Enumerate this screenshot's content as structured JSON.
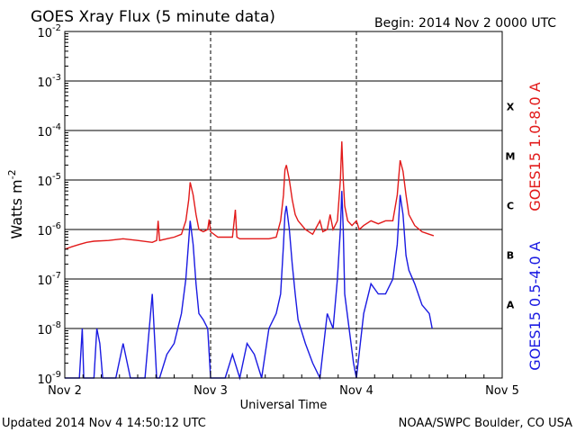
{
  "chart_data": {
    "type": "line",
    "title": "GOES Xray Flux (5 minute data)",
    "begin_label": "Begin:  2014 Nov 2 0000 UTC",
    "xlabel": "Universal Time",
    "ylabel": "Watts m",
    "ylabel_superscript": "-2",
    "x_ticks": [
      "Nov 2",
      "Nov 3",
      "Nov 4",
      "Nov 5"
    ],
    "xlim_days": [
      0,
      3
    ],
    "y_scale": "log",
    "ylim": [
      1e-09,
      0.01
    ],
    "y_ticks": [
      {
        "mantissa": "10",
        "exp": "-2"
      },
      {
        "mantissa": "10",
        "exp": "-3"
      },
      {
        "mantissa": "10",
        "exp": "-4"
      },
      {
        "mantissa": "10",
        "exp": "-5"
      },
      {
        "mantissa": "10",
        "exp": "-6"
      },
      {
        "mantissa": "10",
        "exp": "-7"
      },
      {
        "mantissa": "10",
        "exp": "-8"
      },
      {
        "mantissa": "10",
        "exp": "-9"
      }
    ],
    "flare_classes": [
      "X",
      "M",
      "C",
      "B",
      "A"
    ],
    "grid": true,
    "series": [
      {
        "name": "GOES15 1.0-8.0 A",
        "color": "#e21a1a",
        "points": [
          [
            0.0,
            4e-07
          ],
          [
            0.05,
            4.5e-07
          ],
          [
            0.1,
            5e-07
          ],
          [
            0.15,
            5.5e-07
          ],
          [
            0.2,
            5.8e-07
          ],
          [
            0.3,
            6e-07
          ],
          [
            0.4,
            6.5e-07
          ],
          [
            0.5,
            6e-07
          ],
          [
            0.6,
            5.5e-07
          ],
          [
            0.63,
            6e-07
          ],
          [
            0.64,
            1.5e-06
          ],
          [
            0.65,
            6e-07
          ],
          [
            0.7,
            6.5e-07
          ],
          [
            0.75,
            7e-07
          ],
          [
            0.8,
            8e-07
          ],
          [
            0.83,
            1.5e-06
          ],
          [
            0.85,
            4e-06
          ],
          [
            0.86,
            9e-06
          ],
          [
            0.88,
            5e-06
          ],
          [
            0.9,
            2e-06
          ],
          [
            0.92,
            1e-06
          ],
          [
            0.95,
            9e-07
          ],
          [
            0.98,
            1e-06
          ],
          [
            0.99,
            1.6e-06
          ],
          [
            1.0,
            9e-07
          ],
          [
            1.05,
            7e-07
          ],
          [
            1.1,
            7e-07
          ],
          [
            1.15,
            7e-07
          ],
          [
            1.17,
            2.5e-06
          ],
          [
            1.18,
            7e-07
          ],
          [
            1.2,
            6.5e-07
          ],
          [
            1.3,
            6.5e-07
          ],
          [
            1.4,
            6.5e-07
          ],
          [
            1.45,
            7e-07
          ],
          [
            1.48,
            1.5e-06
          ],
          [
            1.5,
            5e-06
          ],
          [
            1.51,
            1.6e-05
          ],
          [
            1.52,
            2e-05
          ],
          [
            1.54,
            1e-05
          ],
          [
            1.56,
            4e-06
          ],
          [
            1.58,
            2e-06
          ],
          [
            1.6,
            1.5e-06
          ],
          [
            1.65,
            1e-06
          ],
          [
            1.7,
            8e-07
          ],
          [
            1.75,
            1.5e-06
          ],
          [
            1.77,
            9e-07
          ],
          [
            1.8,
            1e-06
          ],
          [
            1.82,
            2e-06
          ],
          [
            1.84,
            1e-06
          ],
          [
            1.87,
            1.5e-06
          ],
          [
            1.89,
            1e-05
          ],
          [
            1.9,
            6e-05
          ],
          [
            1.91,
            1e-05
          ],
          [
            1.92,
            3e-06
          ],
          [
            1.94,
            1.5e-06
          ],
          [
            1.97,
            1.2e-06
          ],
          [
            2.0,
            1.5e-06
          ],
          [
            2.02,
            1e-06
          ],
          [
            2.05,
            1.2e-06
          ],
          [
            2.1,
            1.5e-06
          ],
          [
            2.15,
            1.3e-06
          ],
          [
            2.2,
            1.5e-06
          ],
          [
            2.25,
            1.5e-06
          ],
          [
            2.28,
            5e-06
          ],
          [
            2.3,
            2.5e-05
          ],
          [
            2.32,
            1.5e-05
          ],
          [
            2.34,
            5e-06
          ],
          [
            2.36,
            2e-06
          ],
          [
            2.4,
            1.2e-06
          ],
          [
            2.45,
            9e-07
          ],
          [
            2.5,
            8e-07
          ],
          [
            2.53,
            7.5e-07
          ]
        ]
      },
      {
        "name": "GOES15 0.5-4.0 A",
        "color": "#1a1ae2",
        "points": [
          [
            0.0,
            1e-09
          ],
          [
            0.1,
            1e-09
          ],
          [
            0.12,
            1e-08
          ],
          [
            0.13,
            1e-09
          ],
          [
            0.2,
            1e-09
          ],
          [
            0.22,
            1e-08
          ],
          [
            0.24,
            5e-09
          ],
          [
            0.26,
            1e-09
          ],
          [
            0.35,
            1e-09
          ],
          [
            0.4,
            5e-09
          ],
          [
            0.45,
            1e-09
          ],
          [
            0.5,
            1e-09
          ],
          [
            0.55,
            1e-09
          ],
          [
            0.6,
            5e-08
          ],
          [
            0.63,
            1e-09
          ],
          [
            0.65,
            1e-09
          ],
          [
            0.7,
            3e-09
          ],
          [
            0.75,
            5e-09
          ],
          [
            0.8,
            2e-08
          ],
          [
            0.83,
            1e-07
          ],
          [
            0.85,
            6e-07
          ],
          [
            0.86,
            1.5e-06
          ],
          [
            0.88,
            5e-07
          ],
          [
            0.9,
            8e-08
          ],
          [
            0.92,
            2e-08
          ],
          [
            0.95,
            1.5e-08
          ],
          [
            0.98,
            1e-08
          ],
          [
            1.0,
            1e-09
          ],
          [
            1.05,
            1e-09
          ],
          [
            1.1,
            1e-09
          ],
          [
            1.15,
            3e-09
          ],
          [
            1.2,
            1e-09
          ],
          [
            1.25,
            5e-09
          ],
          [
            1.3,
            3e-09
          ],
          [
            1.35,
            1e-09
          ],
          [
            1.4,
            1e-08
          ],
          [
            1.45,
            2e-08
          ],
          [
            1.48,
            5e-08
          ],
          [
            1.5,
            5e-07
          ],
          [
            1.51,
            2e-06
          ],
          [
            1.52,
            3e-06
          ],
          [
            1.54,
            1e-06
          ],
          [
            1.56,
            2e-07
          ],
          [
            1.58,
            5e-08
          ],
          [
            1.6,
            1.5e-08
          ],
          [
            1.65,
            5e-09
          ],
          [
            1.7,
            2e-09
          ],
          [
            1.75,
            1e-09
          ],
          [
            1.8,
            2e-08
          ],
          [
            1.84,
            1e-08
          ],
          [
            1.87,
            1e-07
          ],
          [
            1.89,
            1e-06
          ],
          [
            1.9,
            6e-06
          ],
          [
            1.91,
            1e-06
          ],
          [
            1.92,
            5e-08
          ],
          [
            1.95,
            1e-08
          ],
          [
            1.98,
            2e-09
          ],
          [
            2.0,
            1e-09
          ],
          [
            2.05,
            2e-08
          ],
          [
            2.1,
            8e-08
          ],
          [
            2.15,
            5e-08
          ],
          [
            2.2,
            5e-08
          ],
          [
            2.25,
            1e-07
          ],
          [
            2.28,
            5e-07
          ],
          [
            2.3,
            5e-06
          ],
          [
            2.32,
            2e-06
          ],
          [
            2.34,
            3e-07
          ],
          [
            2.36,
            1.5e-07
          ],
          [
            2.4,
            8e-08
          ],
          [
            2.45,
            3e-08
          ],
          [
            2.5,
            2e-08
          ],
          [
            2.52,
            1e-08
          ]
        ]
      }
    ],
    "footer_left": "Updated 2014 Nov  4 14:50:12 UTC",
    "footer_right": "NOAA/SWPC Boulder, CO USA"
  }
}
